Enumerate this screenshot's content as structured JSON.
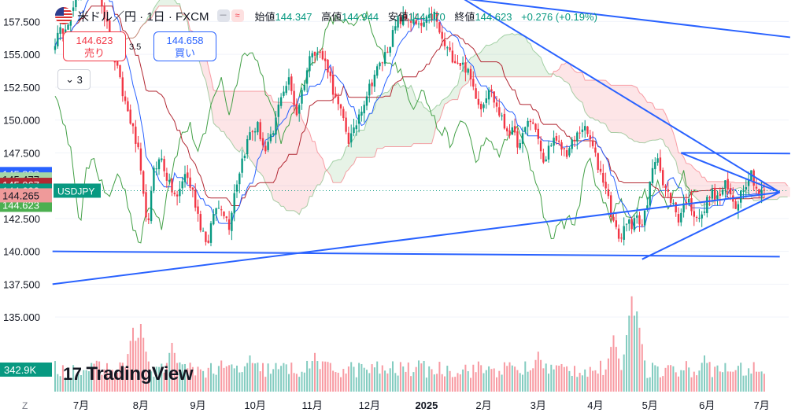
{
  "header": {
    "symbol": "米ドル／円 · 1日 · FXCM",
    "open_label": "始値",
    "open": "144.347",
    "high_label": "高値",
    "high": "144.944",
    "low_label": "安値",
    "low": "144.170",
    "close_label": "終値",
    "close": "144.623",
    "change": "+0.276 (+0.19%)",
    "icon_flag": "us-flag-icon",
    "pill_a": "－",
    "pill_b": "≈"
  },
  "trade": {
    "sell_price": "144.623",
    "sell_label": "売り",
    "buy_price": "144.658",
    "buy_label": "買い",
    "spread": "3.5"
  },
  "collapse_label": "3",
  "logo_text": "TradingView",
  "logo_mark": "17",
  "colors": {
    "up": "#089981",
    "down": "#f23645",
    "trend": "#2962ff",
    "conv": "#2962ff",
    "base": "#b22833",
    "lag": "#43a047"
  },
  "chart_data": {
    "type": "candlestick",
    "symbol": "USDJPY",
    "y_ticks": [
      157.5,
      155.0,
      152.5,
      150.0,
      147.5,
      145.0,
      142.5,
      140.0,
      137.5,
      135.0
    ],
    "y_range": [
      133.4,
      159.0
    ],
    "x_labels": [
      "7月",
      "8月",
      "9月",
      "10月",
      "11月",
      "12月",
      "2025",
      "2月",
      "3月",
      "4月",
      "5月",
      "6月",
      "7月"
    ],
    "x_label_index": [
      10,
      33,
      55,
      77,
      99,
      121,
      143,
      165,
      186,
      208,
      229,
      251,
      272
    ],
    "price_tags": [
      {
        "label": "145.888",
        "value": 145.888,
        "color": "#2962ff"
      },
      {
        "label": "145.477",
        "value": 145.477,
        "color": "#a5d6a7"
      },
      {
        "label": "145.067",
        "value": 145.067,
        "color": "#b22833"
      },
      {
        "label": "144.623",
        "value": 144.623,
        "color": "#089981"
      },
      {
        "label": "144.623",
        "value": 144.623,
        "color": "#4caf50"
      },
      {
        "label": "144.265",
        "value": 144.265,
        "color": "#ef9a9a"
      }
    ],
    "symbol_tag": "USDJPY",
    "volume_tag": "342.9K",
    "bottom_left": "Z",
    "anchors": [
      [
        0,
        156.0
      ],
      [
        6,
        158.0
      ],
      [
        11,
        160.5
      ],
      [
        15,
        161.5
      ],
      [
        19,
        158.0
      ],
      [
        22,
        155.5
      ],
      [
        26,
        152.0
      ],
      [
        29,
        150.0
      ],
      [
        32,
        147.5
      ],
      [
        34,
        144.0
      ],
      [
        36,
        142.0
      ],
      [
        38,
        146.5
      ],
      [
        41,
        147.0
      ],
      [
        44,
        145.0
      ],
      [
        47,
        144.0
      ],
      [
        50,
        146.0
      ],
      [
        53,
        144.5
      ],
      [
        56,
        142.0
      ],
      [
        59,
        140.5
      ],
      [
        61,
        143.0
      ],
      [
        64,
        143.5
      ],
      [
        67,
        142.0
      ],
      [
        69,
        144.5
      ],
      [
        72,
        147.0
      ],
      [
        75,
        149.0
      ],
      [
        78,
        149.5
      ],
      [
        81,
        147.5
      ],
      [
        84,
        149.0
      ],
      [
        87,
        152.0
      ],
      [
        90,
        153.0
      ],
      [
        93,
        150.5
      ],
      [
        96,
        153.0
      ],
      [
        99,
        155.5
      ],
      [
        102,
        155.0
      ],
      [
        105,
        154.0
      ],
      [
        108,
        151.5
      ],
      [
        111,
        150.0
      ],
      [
        113,
        148.5
      ],
      [
        115,
        149.0
      ],
      [
        117,
        150.5
      ],
      [
        120,
        152.0
      ],
      [
        123,
        153.5
      ],
      [
        126,
        154.5
      ],
      [
        129,
        156.0
      ],
      [
        132,
        157.5
      ],
      [
        136,
        157.8
      ],
      [
        140,
        157.0
      ],
      [
        143,
        157.5
      ],
      [
        146,
        158.0
      ],
      [
        149,
        156.0
      ],
      [
        152,
        155.0
      ],
      [
        155,
        154.5
      ],
      [
        158,
        154.0
      ],
      [
        161,
        152.5
      ],
      [
        164,
        151.0
      ],
      [
        167,
        152.5
      ],
      [
        170,
        151.0
      ],
      [
        173,
        149.5
      ],
      [
        176,
        149.0
      ],
      [
        179,
        148.0
      ],
      [
        182,
        150.0
      ],
      [
        185,
        149.5
      ],
      [
        188,
        146.5
      ],
      [
        191,
        148.5
      ],
      [
        194,
        148.0
      ],
      [
        197,
        147.5
      ],
      [
        200,
        148.5
      ],
      [
        203,
        149.5
      ],
      [
        206,
        148.5
      ],
      [
        209,
        146.5
      ],
      [
        212,
        145.0
      ],
      [
        214,
        143.0
      ],
      [
        216,
        141.5
      ],
      [
        218,
        141.0
      ],
      [
        220,
        142.5
      ],
      [
        222,
        141.5
      ],
      [
        224,
        143.0
      ],
      [
        226,
        142.0
      ],
      [
        228,
        143.5
      ],
      [
        230,
        146.5
      ],
      [
        232,
        147.5
      ],
      [
        234,
        145.0
      ],
      [
        237,
        144.0
      ],
      [
        240,
        142.5
      ],
      [
        243,
        144.0
      ],
      [
        246,
        143.0
      ],
      [
        249,
        142.5
      ],
      [
        252,
        144.5
      ],
      [
        255,
        144.0
      ],
      [
        258,
        145.0
      ],
      [
        262,
        143.5
      ],
      [
        265,
        145.0
      ],
      [
        268,
        146.0
      ],
      [
        271,
        144.3
      ],
      [
        273,
        144.623
      ]
    ],
    "volume_peaks": [
      [
        30,
        5.2
      ],
      [
        33,
        5.5
      ],
      [
        45,
        4.0
      ],
      [
        75,
        3.0
      ],
      [
        100,
        3.2
      ],
      [
        140,
        2.6
      ],
      [
        186,
        3.3
      ],
      [
        215,
        4.6
      ],
      [
        222,
        7.7
      ],
      [
        224,
        6.5
      ],
      [
        250,
        3.0
      ]
    ],
    "trend_lines": [
      {
        "from": [
          -1,
          137.5
        ],
        "to": [
          279,
          144.5
        ]
      },
      {
        "from": [
          -1,
          140.0
        ],
        "to": [
          279,
          139.6
        ]
      },
      {
        "from": [
          226,
          139.4
        ],
        "to": [
          279,
          144.5
        ]
      },
      {
        "from": [
          155,
          159.5
        ],
        "to": [
          279,
          144.5
        ]
      },
      {
        "from": [
          241,
          147.5
        ],
        "to": [
          279,
          144.5
        ]
      },
      {
        "from": [
          241,
          147.5
        ],
        "to": [
          283,
          147.45
        ]
      },
      {
        "from": [
          125,
          160.0
        ],
        "to": [
          283,
          156.3
        ]
      }
    ]
  }
}
